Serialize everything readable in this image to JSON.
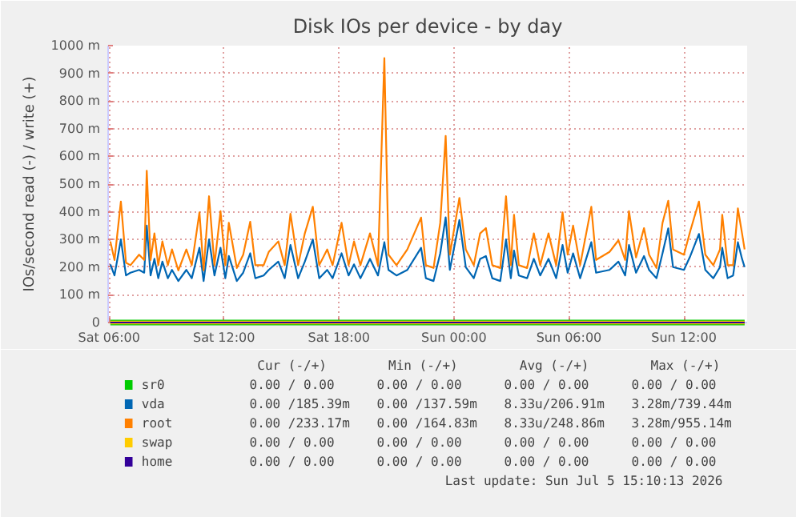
{
  "chart_data": {
    "type": "line",
    "title": "Disk IOs per device - by day",
    "ylabel": "IOs/second read (-) / write (+)",
    "x": [
      "2026-07-04T06:04",
      "2026-07-04T06:17",
      "2026-07-04T06:37",
      "2026-07-04T06:53",
      "2026-07-04T07:07",
      "2026-07-04T07:34",
      "2026-07-04T07:50",
      "2026-07-04T07:58",
      "2026-07-04T08:10",
      "2026-07-04T08:22",
      "2026-07-04T08:34",
      "2026-07-04T08:47",
      "2026-07-04T09:04",
      "2026-07-04T09:17",
      "2026-07-04T09:37",
      "2026-07-04T10:02",
      "2026-07-04T10:19",
      "2026-07-04T10:43",
      "2026-07-04T10:56",
      "2026-07-04T11:13",
      "2026-07-04T11:30",
      "2026-07-04T11:49",
      "2026-07-04T12:04",
      "2026-07-04T12:15",
      "2026-07-04T12:40",
      "2026-07-04T13:00",
      "2026-07-04T13:22",
      "2026-07-04T13:38",
      "2026-07-04T14:04",
      "2026-07-04T14:20",
      "2026-07-04T14:50",
      "2026-07-04T15:10",
      "2026-07-04T15:28",
      "2026-07-04T15:52",
      "2026-07-04T16:13",
      "2026-07-04T16:38",
      "2026-07-04T16:58",
      "2026-07-04T17:23",
      "2026-07-04T17:40",
      "2026-07-04T18:08",
      "2026-07-04T18:30",
      "2026-07-04T18:47",
      "2026-07-04T19:07",
      "2026-07-04T19:37",
      "2026-07-04T20:02",
      "2026-07-04T20:22",
      "2026-07-04T20:35",
      "2026-07-04T21:00",
      "2026-07-04T21:34",
      "2026-07-04T22:17",
      "2026-07-04T22:32",
      "2026-07-04T22:56",
      "2026-07-04T23:17",
      "2026-07-04T23:34",
      "2026-07-04T23:47",
      "2026-07-05T00:17",
      "2026-07-05T00:37",
      "2026-07-05T01:02",
      "2026-07-05T01:22",
      "2026-07-05T01:40",
      "2026-07-05T02:00",
      "2026-07-05T02:25",
      "2026-07-05T02:43",
      "2026-07-05T02:58",
      "2026-07-05T03:08",
      "2026-07-05T03:23",
      "2026-07-05T03:49",
      "2026-07-05T04:10",
      "2026-07-05T04:30",
      "2026-07-05T04:56",
      "2026-07-05T05:20",
      "2026-07-05T05:40",
      "2026-07-05T05:56",
      "2026-07-05T06:13",
      "2026-07-05T06:35",
      "2026-07-05T07:10",
      "2026-07-05T07:25",
      "2026-07-05T08:07",
      "2026-07-05T08:35",
      "2026-07-05T08:56",
      "2026-07-05T09:08",
      "2026-07-05T09:30",
      "2026-07-05T09:55",
      "2026-07-05T10:11",
      "2026-07-05T10:34",
      "2026-07-05T10:53",
      "2026-07-05T11:11",
      "2026-07-05T11:26",
      "2026-07-05T12:00",
      "2026-07-05T12:20",
      "2026-07-05T12:47",
      "2026-07-05T13:07",
      "2026-07-05T13:32",
      "2026-07-05T13:53",
      "2026-07-05T14:00",
      "2026-07-05T14:17",
      "2026-07-05T14:34",
      "2026-07-05T14:49",
      "2026-07-05T15:02",
      "2026-07-05T15:10"
    ],
    "series": [
      {
        "name": "sr0",
        "color": "#00cc00",
        "values": [
          0,
          0,
          0,
          0,
          0,
          0,
          0,
          0,
          0,
          0,
          0,
          0,
          0,
          0,
          0,
          0,
          0,
          0,
          0,
          0,
          0,
          0,
          0,
          0,
          0,
          0,
          0,
          0,
          0,
          0,
          0,
          0,
          0,
          0,
          0,
          0,
          0,
          0,
          0,
          0,
          0,
          0,
          0,
          0,
          0,
          0,
          0,
          0,
          0,
          0,
          0,
          0,
          0,
          0,
          0,
          0,
          0,
          0,
          0,
          0,
          0,
          0,
          0,
          0,
          0,
          0,
          0,
          0,
          0,
          0,
          0,
          0,
          0,
          0,
          0,
          0,
          0,
          0,
          0,
          0,
          0,
          0,
          0,
          0,
          0,
          0,
          0,
          0,
          0,
          0,
          0,
          0,
          0,
          0,
          0,
          0,
          0,
          0,
          0,
          0
        ]
      },
      {
        "name": "vda",
        "color": "#0066b3",
        "values": [
          210,
          170,
          300,
          170,
          180,
          190,
          180,
          350,
          170,
          230,
          160,
          220,
          160,
          190,
          150,
          190,
          160,
          270,
          150,
          300,
          170,
          270,
          160,
          240,
          150,
          180,
          250,
          160,
          170,
          190,
          220,
          160,
          280,
          160,
          220,
          300,
          160,
          190,
          160,
          250,
          170,
          210,
          160,
          230,
          170,
          290,
          190,
          170,
          190,
          270,
          160,
          150,
          250,
          380,
          190,
          370,
          200,
          160,
          230,
          240,
          160,
          150,
          300,
          160,
          260,
          170,
          160,
          230,
          170,
          230,
          160,
          280,
          180,
          250,
          160,
          290,
          180,
          190,
          220,
          170,
          280,
          180,
          240,
          190,
          160,
          250,
          340,
          200,
          190,
          240,
          320,
          190,
          160,
          200,
          270,
          160,
          170,
          290,
          230,
          200
        ]
      },
      {
        "name": "root",
        "color": "#ff8000",
        "values": [
          293,
          226,
          437,
          216,
          207,
          245,
          226,
          548,
          226,
          322,
          207,
          293,
          207,
          264,
          188,
          264,
          207,
          398,
          188,
          456,
          207,
          402,
          207,
          360,
          197,
          245,
          364,
          207,
          207,
          255,
          293,
          207,
          393,
          207,
          322,
          418,
          207,
          264,
          207,
          360,
          207,
          293,
          207,
          322,
          207,
          955,
          245,
          207,
          264,
          379,
          207,
          197,
          360,
          674,
          245,
          450,
          264,
          207,
          322,
          341,
          207,
          197,
          456,
          207,
          389,
          207,
          197,
          322,
          207,
          322,
          207,
          398,
          245,
          350,
          207,
          418,
          226,
          255,
          297,
          226,
          402,
          235,
          341,
          245,
          197,
          360,
          440,
          264,
          245,
          331,
          437,
          245,
          207,
          264,
          389,
          207,
          207,
          412,
          322,
          264
        ]
      },
      {
        "name": "swap",
        "color": "#ffcc00",
        "values": [
          0,
          0,
          0,
          0,
          0,
          0,
          0,
          0,
          0,
          0,
          0,
          0,
          0,
          0,
          0,
          0,
          0,
          0,
          0,
          0,
          0,
          0,
          0,
          0,
          0,
          0,
          0,
          0,
          0,
          0,
          0,
          0,
          0,
          0,
          0,
          0,
          0,
          0,
          0,
          0,
          0,
          0,
          0,
          0,
          0,
          0,
          0,
          0,
          0,
          0,
          0,
          0,
          0,
          0,
          0,
          0,
          0,
          0,
          0,
          0,
          0,
          0,
          0,
          0,
          0,
          0,
          0,
          0,
          0,
          0,
          0,
          0,
          0,
          0,
          0,
          0,
          0,
          0,
          0,
          0,
          0,
          0,
          0,
          0,
          0,
          0,
          0,
          0,
          0,
          0,
          0,
          0,
          0,
          0,
          0,
          0,
          0,
          0,
          0,
          0
        ]
      },
      {
        "name": "home",
        "color": "#330099",
        "values": [
          0,
          0,
          0,
          0,
          0,
          0,
          0,
          0,
          0,
          0,
          0,
          0,
          0,
          0,
          0,
          0,
          0,
          0,
          0,
          0,
          0,
          0,
          0,
          0,
          0,
          0,
          0,
          0,
          0,
          0,
          0,
          0,
          0,
          0,
          0,
          0,
          0,
          0,
          0,
          0,
          0,
          0,
          0,
          0,
          0,
          0,
          0,
          0,
          0,
          0,
          0,
          0,
          0,
          0,
          0,
          0,
          0,
          0,
          0,
          0,
          0,
          0,
          0,
          0,
          0,
          0,
          0,
          0,
          0,
          0,
          0,
          0,
          0,
          0,
          0,
          0,
          0,
          0,
          0,
          0,
          0,
          0,
          0,
          0,
          0,
          0,
          0,
          0,
          0,
          0,
          0,
          0,
          0,
          0,
          0,
          0,
          0,
          0,
          0,
          0
        ]
      }
    ],
    "xlim": [
      "2026-07-04T05:57",
      "2026-07-05T15:18"
    ],
    "xticks": [
      {
        "value": "2026-07-04T06:00",
        "label": "Sat 06:00"
      },
      {
        "value": "2026-07-04T12:00",
        "label": "Sat 12:00"
      },
      {
        "value": "2026-07-04T18:00",
        "label": "Sat 18:00"
      },
      {
        "value": "2026-07-05T00:00",
        "label": "Sun 00:00"
      },
      {
        "value": "2026-07-05T06:00",
        "label": "Sun 06:00"
      },
      {
        "value": "2026-07-05T12:00",
        "label": "Sun 12:00"
      }
    ],
    "ylim": [
      0,
      1000
    ],
    "yticks": [
      0,
      {
        "value": 100,
        "label": "100 m"
      },
      {
        "value": 200,
        "label": "200 m"
      },
      {
        "value": 300,
        "label": "300 m"
      },
      {
        "value": 400,
        "label": "400 m"
      },
      {
        "value": 500,
        "label": "500 m"
      },
      {
        "value": 600,
        "label": "600 m"
      },
      {
        "value": 700,
        "label": "700 m"
      },
      {
        "value": 800,
        "label": "800 m"
      },
      {
        "value": 900,
        "label": "900 m"
      },
      {
        "value": 1000,
        "label": "1000 m"
      }
    ],
    "grid": true,
    "legend": "bottom",
    "line_style": "solid",
    "annotations": [
      "Cur (-/+)",
      "Min (-/+)",
      "Avg (-/+)",
      "Max (-/+)",
      "0.00 /  0.00",
      "0.00 /  0.00",
      "0.00 /  0.00",
      "0.00 /  0.00",
      "0.00 /185.39m",
      "0.00 /137.59m",
      "8.33u/206.91m",
      "3.28m/739.44m",
      "0.00 /233.17m",
      "0.00 /164.83m",
      "8.33u/248.86m",
      "3.28m/955.14m",
      "0.00 /  0.00",
      "0.00 /  0.00",
      "0.00 /  0.00",
      "0.00 /  0.00",
      "0.00 /  0.00",
      "0.00 /  0.00",
      "0.00 /  0.00",
      "0.00 /  0.00",
      "Last update: Sun Jul  5 15:10:13 2026"
    ]
  }
}
